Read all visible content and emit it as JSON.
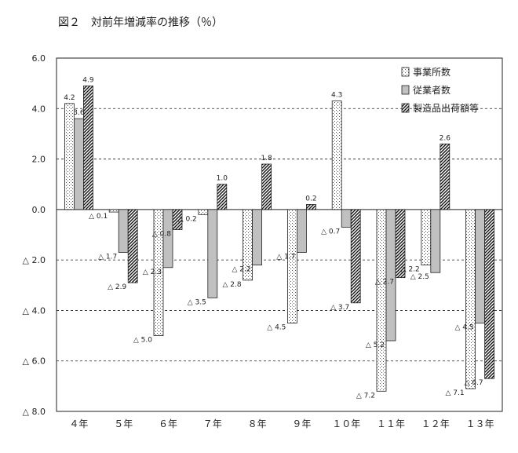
{
  "chart_data": {
    "type": "bar",
    "title": "図２　対前年増減率の推移（％）",
    "categories": [
      "４年",
      "５年",
      "６年",
      "７年",
      "８年",
      "９年",
      "１０年",
      "１１年",
      "１２年",
      "１３年"
    ],
    "series": [
      {
        "name": "事業所数",
        "values": [
          4.2,
          -0.1,
          -5.0,
          -0.2,
          -2.8,
          -4.5,
          4.3,
          -7.2,
          -2.2,
          -7.1
        ]
      },
      {
        "name": "従業者数",
        "values": [
          3.6,
          -1.7,
          -2.3,
          -3.5,
          -2.2,
          -1.7,
          -0.7,
          -5.2,
          -2.5,
          -4.5
        ]
      },
      {
        "name": "製造品出荷額等",
        "values": [
          4.9,
          -2.9,
          -0.8,
          1.0,
          1.8,
          0.2,
          -3.7,
          -2.7,
          2.6,
          -6.7
        ]
      }
    ],
    "data_labels": [
      [
        "4.2",
        "3.6",
        "4.9"
      ],
      [
        "△ 0.1",
        "△ 1.7",
        "△ 2.9"
      ],
      [
        "△ 5.0",
        "△ 2.3",
        "△ 0.8"
      ],
      [
        "△ 0.2",
        "△ 3.5",
        "1.0"
      ],
      [
        "△ 2.8",
        "△ 2.2",
        "1.8"
      ],
      [
        "△ 4.5",
        "△ 1.7",
        "0.2"
      ],
      [
        "4.3",
        "△ 0.7",
        "△ 3.7"
      ],
      [
        "△ 7.2",
        "△ 5.2",
        "△ 2.7"
      ],
      [
        "△ 2.2",
        "△ 2.5",
        "2.6"
      ],
      [
        "△ 7.1",
        "△ 4.5",
        "△ 6.7"
      ]
    ],
    "ylim": [
      -8.0,
      6.0
    ],
    "yticks": [
      6.0,
      4.0,
      2.0,
      0.0,
      -2.0,
      -4.0,
      -6.0,
      -8.0
    ],
    "ytick_labels": [
      "6.0",
      "4.0",
      "2.0",
      "0.0",
      "△ 2.0",
      "△ 4.0",
      "△ 6.0",
      "△ 8.0"
    ],
    "grid": "dashed horizontal",
    "legend_position": "top-right",
    "xlabel": "",
    "ylabel": ""
  }
}
